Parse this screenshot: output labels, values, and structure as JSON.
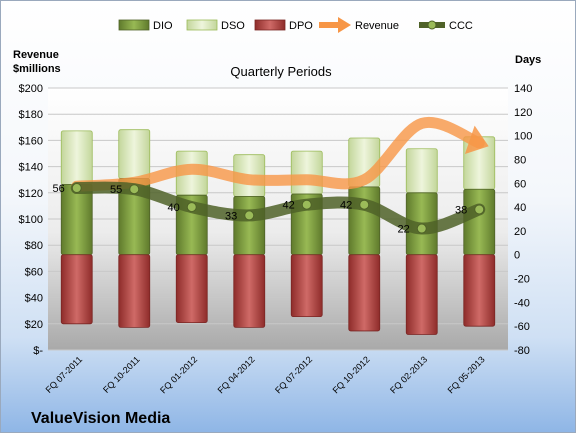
{
  "company": "ValueVision Media",
  "chart_data": {
    "type": "bar",
    "title": "Quarterly Periods",
    "left_axis_title": "Revenue\n$millions",
    "right_axis_title": "Days",
    "categories": [
      "FQ 07-2011",
      "FQ 10-2011",
      "FQ 01-2012",
      "FQ 04-2012",
      "FQ 07-2012",
      "FQ 10-2012",
      "FQ 02-2013",
      "FQ 05-2013"
    ],
    "left_ylim": [
      0,
      200
    ],
    "left_ticks": [
      "$-",
      "$20",
      "$40",
      "$60",
      "$80",
      "$100",
      "$120",
      "$140",
      "$160",
      "$180",
      "$200"
    ],
    "right_ylim": [
      -80,
      140
    ],
    "right_ticks": [
      "-80",
      "-60",
      "-40",
      "-20",
      "0",
      "20",
      "40",
      "60",
      "80",
      "100",
      "120",
      "140"
    ],
    "legend": [
      "DIO",
      "DSO",
      "DPO",
      "Revenue",
      "CCC"
    ],
    "legend_position": "top",
    "series": [
      {
        "name": "DIO",
        "type": "stacked-bar",
        "axis": "right",
        "color": "#77933c",
        "values": [
          59,
          64,
          50,
          49,
          51,
          57,
          52,
          55
        ]
      },
      {
        "name": "DSO",
        "type": "stacked-bar",
        "axis": "right",
        "color": "#d7e4bd",
        "values": [
          45,
          41,
          37,
          35,
          36,
          41,
          37,
          44
        ]
      },
      {
        "name": "DPO",
        "type": "negative-bar",
        "axis": "right",
        "color": "#c0504d",
        "values": [
          -58,
          -61,
          -57,
          -61,
          -52,
          -64,
          -67,
          -60
        ]
      },
      {
        "name": "Revenue",
        "type": "line",
        "axis": "left",
        "color": "#f79646",
        "values": [
          125,
          128,
          138,
          130,
          130,
          130,
          173,
          158
        ]
      },
      {
        "name": "CCC",
        "type": "line",
        "axis": "right",
        "color": "#4f6228",
        "values": [
          56,
          55,
          40,
          33,
          42,
          42,
          22,
          38
        ],
        "labels": [
          "56",
          "55",
          "40",
          "33",
          "42",
          "42",
          "22",
          "38"
        ]
      }
    ]
  }
}
